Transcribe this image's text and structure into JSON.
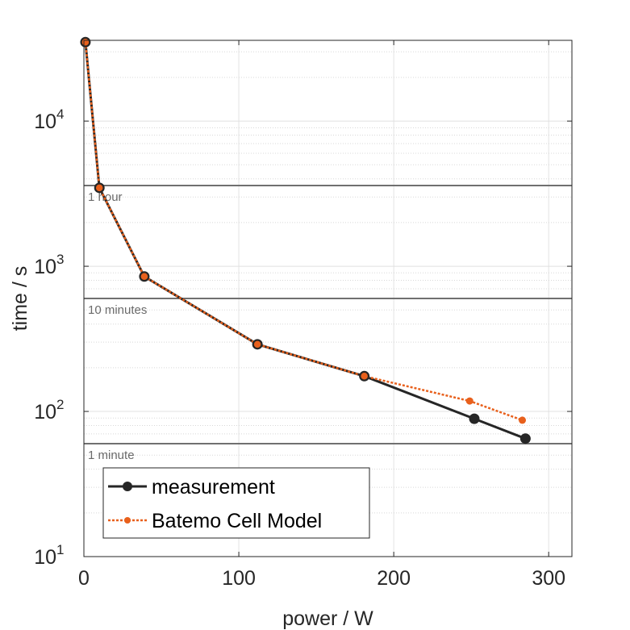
{
  "chart_data": {
    "type": "line",
    "xlabel": "power / W",
    "ylabel": "time / s",
    "xlim": [
      0,
      315
    ],
    "ylim": [
      10,
      36000
    ],
    "yscale": "log",
    "grid": true,
    "x_ticks": [
      0,
      100,
      200,
      300
    ],
    "x_tick_labels": [
      "0",
      "100",
      "200",
      "300"
    ],
    "y_ticks": [
      10,
      100,
      1000,
      10000
    ],
    "y_tick_labels": [
      {
        "base": "10",
        "exp": "1"
      },
      {
        "base": "10",
        "exp": "2"
      },
      {
        "base": "10",
        "exp": "3"
      },
      {
        "base": "10",
        "exp": "4"
      }
    ],
    "reference_lines": [
      {
        "y": 3600,
        "label": "1 hour"
      },
      {
        "y": 600,
        "label": "10 minutes"
      },
      {
        "y": 60,
        "label": "1 minute"
      }
    ],
    "series": [
      {
        "name": "measurement",
        "color": "#262626",
        "style": "solid",
        "x": [
          1,
          10,
          39,
          112,
          181,
          252,
          285
        ],
        "y": [
          35000,
          3470,
          850,
          290,
          175,
          89,
          65
        ]
      },
      {
        "name": "Batemo Cell Model",
        "color": "#e8601c",
        "style": "dotted",
        "x": [
          1,
          10,
          39,
          112,
          181,
          249,
          283
        ],
        "y": [
          35000,
          3470,
          850,
          290,
          175,
          118,
          87
        ]
      }
    ],
    "legend_position": "bottom-left"
  }
}
